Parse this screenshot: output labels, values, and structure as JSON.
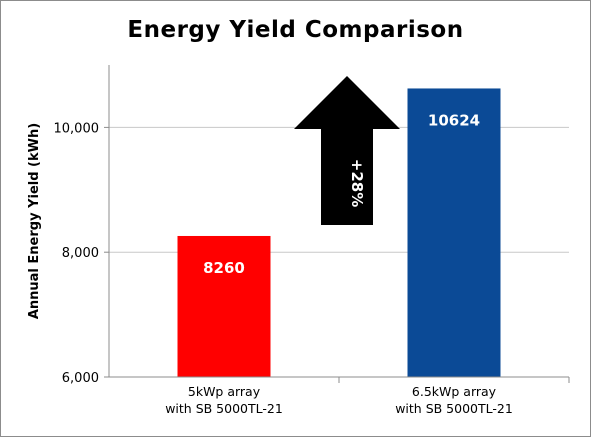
{
  "chart_data": {
    "type": "bar",
    "title": "Energy Yield Comparison",
    "xlabel": "",
    "ylabel": "Annual Energy Yield (kWh)",
    "ylim": [
      6000,
      11000
    ],
    "yticks": [
      {
        "value": 6000,
        "label": "6,000"
      },
      {
        "value": 8000,
        "label": "8,000"
      },
      {
        "value": 10000,
        "label": "10,000"
      }
    ],
    "grid": true,
    "categories": [
      [
        "5kWp array",
        "with SB 5000TL-21"
      ],
      [
        "6.5kWp array",
        "with SB 5000TL-21"
      ]
    ],
    "values": [
      8260,
      10624
    ],
    "data_labels": [
      "8260",
      "10624"
    ],
    "bar_colors": [
      "#ff0000",
      "#0b4a96"
    ],
    "annotation": {
      "text": "+28%",
      "shape": "up-arrow",
      "color": "#000000"
    }
  }
}
